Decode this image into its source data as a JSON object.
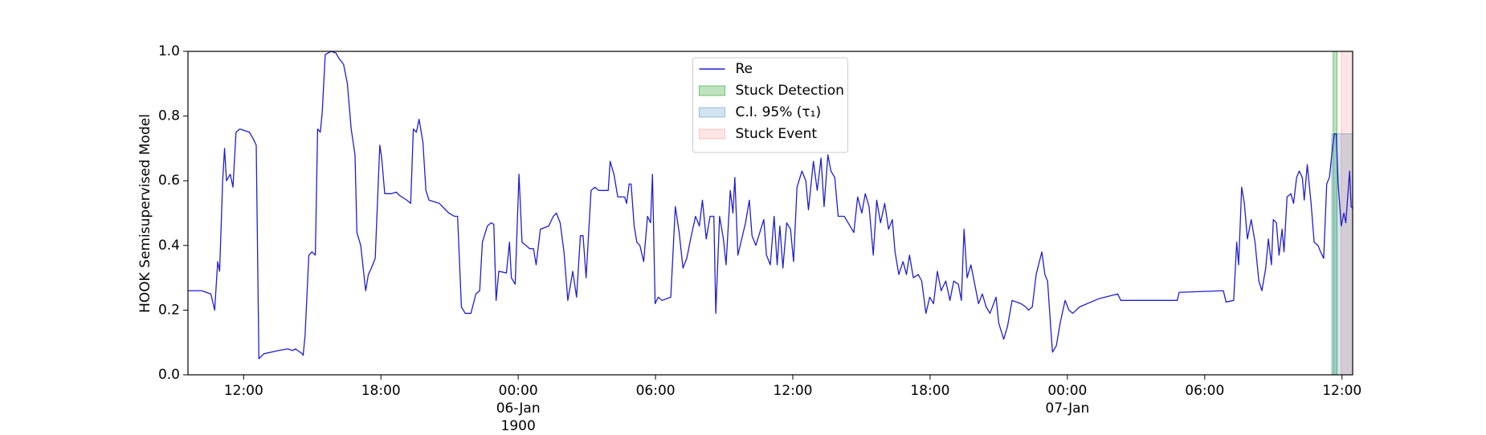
{
  "chart_data": {
    "type": "line",
    "ylabel": "HOOK Semisupervised Model",
    "xlim": [
      "1900-01-05T09:34",
      "1900-01-07T12:28"
    ],
    "xticks": [
      {
        "value": "1900-01-05T12:00",
        "label": "12:00"
      },
      {
        "value": "1900-01-05T18:00",
        "label": "18:00"
      },
      {
        "value": "1900-01-06T00:00",
        "label": "00:00\n06-Jan\n1900"
      },
      {
        "value": "1900-01-06T06:00",
        "label": "06:00"
      },
      {
        "value": "1900-01-06T12:00",
        "label": "12:00"
      },
      {
        "value": "1900-01-06T18:00",
        "label": "18:00"
      },
      {
        "value": "1900-01-07T00:00",
        "label": "00:00\n07-Jan"
      },
      {
        "value": "1900-01-07T06:00",
        "label": "06:00"
      },
      {
        "value": "1900-01-07T12:00",
        "label": "12:00"
      }
    ],
    "ylim": [
      0,
      1
    ],
    "yticks": [
      {
        "value": 0,
        "label": "0.0"
      },
      0.2,
      0.4,
      0.6,
      0.8,
      {
        "value": 1,
        "label": "1.0"
      }
    ],
    "grid": false,
    "legend": "upper center",
    "x": [
      "1900-01-05T09:34",
      "1900-01-05T10:10",
      "1900-01-05T10:34",
      "1900-01-05T10:44",
      "1900-01-05T10:52",
      "1900-01-05T10:57",
      "1900-01-05T11:05",
      "1900-01-05T11:10",
      "1900-01-05T11:15",
      "1900-01-05T11:25",
      "1900-01-05T11:32",
      "1900-01-05T11:40",
      "1900-01-05T11:50",
      "1900-01-05T12:15",
      "1900-01-05T12:25",
      "1900-01-05T12:33",
      "1900-01-05T12:40",
      "1900-01-05T12:53",
      "1900-01-05T13:31",
      "1900-01-05T13:56",
      "1900-01-05T14:08",
      "1900-01-05T14:16",
      "1900-01-05T14:34",
      "1900-01-05T14:36",
      "1900-01-05T14:41",
      "1900-01-05T14:51",
      "1900-01-05T14:59",
      "1900-01-05T15:08",
      "1900-01-05T15:14",
      "1900-01-05T15:21",
      "1900-01-05T15:26",
      "1900-01-05T15:34",
      "1900-01-05T15:49",
      "1900-01-05T16:02",
      "1900-01-05T16:09",
      "1900-01-05T16:22",
      "1900-01-05T16:32",
      "1900-01-05T16:42",
      "1900-01-05T16:52",
      "1900-01-05T16:57",
      "1900-01-05T17:07",
      "1900-01-05T17:20",
      "1900-01-05T17:27",
      "1900-01-05T17:35",
      "1900-01-05T17:45",
      "1900-01-05T17:57",
      "1900-01-05T18:02",
      "1900-01-05T18:10",
      "1900-01-05T18:27",
      "1900-01-05T18:40",
      "1900-01-05T18:48",
      "1900-01-05T19:08",
      "1900-01-05T19:18",
      "1900-01-05T19:25",
      "1900-01-05T19:33",
      "1900-01-05T19:40",
      "1900-01-05T19:50",
      "1900-01-05T19:58",
      "1900-01-05T20:06",
      "1900-01-05T20:33",
      "1900-01-05T20:58",
      "1900-01-05T21:13",
      "1900-01-05T21:21",
      "1900-01-05T21:31",
      "1900-01-05T21:41",
      "1900-01-05T21:56",
      "1900-01-05T22:09",
      "1900-01-05T22:19",
      "1900-01-05T22:26",
      "1900-01-05T22:39",
      "1900-01-05T22:49",
      "1900-01-05T22:56",
      "1900-01-05T23:02",
      "1900-01-05T23:09",
      "1900-01-05T23:29",
      "1900-01-05T23:37",
      "1900-01-05T23:42",
      "1900-01-05T23:52",
      "1900-01-06T00:02",
      "1900-01-06T00:10",
      "1900-01-06T00:20",
      "1900-01-06T00:30",
      "1900-01-06T00:40",
      "1900-01-06T00:47",
      "1900-01-06T00:58",
      "1900-01-06T01:20",
      "1900-01-06T01:32",
      "1900-01-06T01:40",
      "1900-01-06T01:50",
      "1900-01-06T02:00",
      "1900-01-06T02:10",
      "1900-01-06T02:23",
      "1900-01-06T02:33",
      "1900-01-06T02:43",
      "1900-01-06T02:50",
      "1900-01-06T02:58",
      "1900-01-06T03:11",
      "1900-01-06T03:21",
      "1900-01-06T03:31",
      "1900-01-06T03:56",
      "1900-01-06T04:01",
      "1900-01-06T04:11",
      "1900-01-06T04:21",
      "1900-01-06T04:39",
      "1900-01-06T04:44",
      "1900-01-06T04:51",
      "1900-01-06T04:56",
      "1900-01-06T05:04",
      "1900-01-06T05:11",
      "1900-01-06T05:19",
      "1900-01-06T05:29",
      "1900-01-06T05:39",
      "1900-01-06T05:47",
      "1900-01-06T05:52",
      "1900-01-06T05:59",
      "1900-01-06T06:07",
      "1900-01-06T06:17",
      "1900-01-06T06:40",
      "1900-01-06T06:52",
      "1900-01-06T07:02",
      "1900-01-06T07:12",
      "1900-01-06T07:22",
      "1900-01-06T07:32",
      "1900-01-06T07:45",
      "1900-01-06T07:55",
      "1900-01-06T08:03",
      "1900-01-06T08:13",
      "1900-01-06T08:23",
      "1900-01-06T08:33",
      "1900-01-06T08:38",
      "1900-01-06T08:48",
      "1900-01-06T08:58",
      "1900-01-06T09:05",
      "1900-01-06T09:16",
      "1900-01-06T09:23",
      "1900-01-06T09:28",
      "1900-01-06T09:36",
      "1900-01-06T09:46",
      "1900-01-06T09:56",
      "1900-01-06T10:06",
      "1900-01-06T10:13",
      "1900-01-06T10:23",
      "1900-01-06T10:36",
      "1900-01-06T10:44",
      "1900-01-06T10:51",
      "1900-01-06T11:01",
      "1900-01-06T11:11",
      "1900-01-06T11:19",
      "1900-01-06T11:26",
      "1900-01-06T11:34",
      "1900-01-06T11:44",
      "1900-01-06T11:54",
      "1900-01-06T12:02",
      "1900-01-06T12:11",
      "1900-01-06T12:24",
      "1900-01-06T12:34",
      "1900-01-06T12:41",
      "1900-01-06T12:54",
      "1900-01-06T13:04",
      "1900-01-06T13:14",
      "1900-01-06T13:22",
      "1900-01-06T13:32",
      "1900-01-06T13:40",
      "1900-01-06T13:50",
      "1900-01-06T13:59",
      "1900-01-06T14:15",
      "1900-01-06T14:25",
      "1900-01-06T14:40",
      "1900-01-06T14:50",
      "1900-01-06T15:01",
      "1900-01-06T15:10",
      "1900-01-06T15:20",
      "1900-01-06T15:31",
      "1900-01-06T15:40",
      "1900-01-06T15:50",
      "1900-01-06T16:01",
      "1900-01-06T16:11",
      "1900-01-06T16:21",
      "1900-01-06T16:28",
      "1900-01-06T16:38",
      "1900-01-06T16:49",
      "1900-01-06T16:58",
      "1900-01-06T17:06",
      "1900-01-06T17:16",
      "1900-01-06T17:29",
      "1900-01-06T17:38",
      "1900-01-06T17:49",
      "1900-01-06T17:59",
      "1900-01-06T18:09",
      "1900-01-06T18:19",
      "1900-01-06T18:29",
      "1900-01-06T18:41",
      "1900-01-06T18:52",
      "1900-01-06T19:02",
      "1900-01-06T19:14",
      "1900-01-06T19:22",
      "1900-01-06T19:29",
      "1900-01-06T19:37",
      "1900-01-06T19:47",
      "1900-01-06T19:57",
      "1900-01-06T20:07",
      "1900-01-06T20:17",
      "1900-01-06T20:27",
      "1900-01-06T20:37",
      "1900-01-06T20:53",
      "1900-01-06T21:00",
      "1900-01-06T21:13",
      "1900-01-06T21:23",
      "1900-01-06T21:35",
      "1900-01-06T21:58",
      "1900-01-06T22:11",
      "1900-01-06T22:18",
      "1900-01-06T22:28",
      "1900-01-06T22:38",
      "1900-01-06T22:53",
      "1900-01-06T23:01",
      "1900-01-06T23:08",
      "1900-01-06T23:16",
      "1900-01-06T23:21",
      "1900-01-06T23:31",
      "1900-01-06T23:41",
      "1900-01-06T23:54",
      "1900-01-07T00:04",
      "1900-01-07T00:14",
      "1900-01-07T00:32",
      "1900-01-07T01:22",
      "1900-01-07T02:12",
      "1900-01-07T02:20",
      "1900-01-07T04:48",
      "1900-01-07T04:53",
      "1900-01-07T06:49",
      "1900-01-07T06:56",
      "1900-01-07T07:16",
      "1900-01-07T07:24",
      "1900-01-07T07:29",
      "1900-01-07T07:37",
      "1900-01-07T07:44",
      "1900-01-07T07:52",
      "1900-01-07T08:02",
      "1900-01-07T08:12",
      "1900-01-07T08:22",
      "1900-01-07T08:30",
      "1900-01-07T08:40",
      "1900-01-07T08:47",
      "1900-01-07T08:55",
      "1900-01-07T09:00",
      "1900-01-07T09:08",
      "1900-01-07T09:15",
      "1900-01-07T09:23",
      "1900-01-07T09:28",
      "1900-01-07T09:36",
      "1900-01-07T09:46",
      "1900-01-07T09:53",
      "1900-01-07T10:01",
      "1900-01-07T10:08",
      "1900-01-07T10:16",
      "1900-01-07T10:21",
      "1900-01-07T10:29",
      "1900-01-07T10:39",
      "1900-01-07T10:47",
      "1900-01-07T10:57",
      "1900-01-07T11:04",
      "1900-01-07T11:12",
      "1900-01-07T11:20",
      "1900-01-07T11:27",
      "1900-01-07T11:35",
      "1900-01-07T11:40",
      "1900-01-07T11:45",
      "1900-01-07T11:50",
      "1900-01-07T11:58",
      "1900-01-07T12:05",
      "1900-01-07T12:10",
      "1900-01-07T12:20",
      "1900-01-07T12:24",
      "1900-01-07T12:28"
    ],
    "series": [
      {
        "name": "Re",
        "color": "#1f1fcc",
        "values": [
          0.26,
          0.26,
          0.25,
          0.2,
          0.35,
          0.32,
          0.6,
          0.7,
          0.6,
          0.62,
          0.58,
          0.75,
          0.76,
          0.75,
          0.73,
          0.71,
          0.05,
          0.065,
          0.075,
          0.08,
          0.075,
          0.08,
          0.065,
          0.06,
          0.12,
          0.37,
          0.38,
          0.37,
          0.76,
          0.75,
          0.81,
          0.99,
          1.0,
          0.995,
          0.98,
          0.96,
          0.9,
          0.76,
          0.68,
          0.44,
          0.4,
          0.26,
          0.31,
          0.33,
          0.36,
          0.71,
          0.67,
          0.56,
          0.56,
          0.565,
          0.555,
          0.54,
          0.53,
          0.76,
          0.75,
          0.79,
          0.72,
          0.57,
          0.54,
          0.53,
          0.5,
          0.49,
          0.49,
          0.21,
          0.19,
          0.19,
          0.25,
          0.26,
          0.41,
          0.46,
          0.47,
          0.465,
          0.23,
          0.32,
          0.315,
          0.41,
          0.3,
          0.28,
          0.62,
          0.41,
          0.4,
          0.39,
          0.39,
          0.34,
          0.45,
          0.46,
          0.49,
          0.5,
          0.47,
          0.38,
          0.23,
          0.32,
          0.24,
          0.43,
          0.43,
          0.3,
          0.57,
          0.58,
          0.57,
          0.57,
          0.66,
          0.62,
          0.55,
          0.55,
          0.53,
          0.59,
          0.59,
          0.46,
          0.41,
          0.4,
          0.35,
          0.49,
          0.47,
          0.62,
          0.22,
          0.24,
          0.23,
          0.24,
          0.52,
          0.44,
          0.33,
          0.36,
          0.42,
          0.49,
          0.46,
          0.54,
          0.42,
          0.49,
          0.49,
          0.19,
          0.49,
          0.42,
          0.34,
          0.57,
          0.5,
          0.61,
          0.37,
          0.42,
          0.47,
          0.54,
          0.43,
          0.4,
          0.45,
          0.48,
          0.37,
          0.34,
          0.49,
          0.34,
          0.46,
          0.33,
          0.47,
          0.45,
          0.35,
          0.58,
          0.63,
          0.6,
          0.51,
          0.66,
          0.57,
          0.67,
          0.52,
          0.68,
          0.63,
          0.61,
          0.49,
          0.49,
          0.47,
          0.44,
          0.55,
          0.5,
          0.56,
          0.52,
          0.37,
          0.54,
          0.47,
          0.53,
          0.45,
          0.48,
          0.38,
          0.31,
          0.35,
          0.31,
          0.37,
          0.3,
          0.31,
          0.29,
          0.19,
          0.24,
          0.22,
          0.32,
          0.26,
          0.29,
          0.23,
          0.29,
          0.28,
          0.23,
          0.45,
          0.3,
          0.34,
          0.28,
          0.22,
          0.25,
          0.21,
          0.19,
          0.24,
          0.16,
          0.11,
          0.15,
          0.23,
          0.22,
          0.21,
          0.2,
          0.21,
          0.31,
          0.38,
          0.31,
          0.29,
          0.15,
          0.07,
          0.09,
          0.16,
          0.23,
          0.2,
          0.19,
          0.21,
          0.235,
          0.25,
          0.23,
          0.23,
          0.255,
          0.26,
          0.225,
          0.23,
          0.41,
          0.34,
          0.58,
          0.53,
          0.42,
          0.48,
          0.41,
          0.29,
          0.26,
          0.33,
          0.42,
          0.34,
          0.48,
          0.47,
          0.37,
          0.45,
          0.38,
          0.55,
          0.56,
          0.53,
          0.61,
          0.63,
          0.61,
          0.54,
          0.65,
          0.53,
          0.41,
          0.4,
          0.38,
          0.36,
          0.59,
          0.61,
          0.7,
          0.745,
          0.745,
          0.59,
          0.46,
          0.5,
          0.47,
          0.63,
          0.52,
          0.515
        ]
      }
    ],
    "spans": [
      {
        "name": "Stuck Detection",
        "color": "#2ca02c",
        "alpha": 0.3,
        "x": [
          "1900-01-07T11:37",
          "1900-01-07T11:47"
        ],
        "y": [
          0,
          1
        ]
      },
      {
        "name": "C.I. 95% (τ₁)",
        "color": "#1f77b4",
        "alpha": 0.2,
        "x": [
          "1900-01-07T11:33",
          "1900-01-07T12:28"
        ],
        "y": [
          0,
          0.745
        ]
      },
      {
        "name": "Stuck Event",
        "color": "#ff0000",
        "alpha": 0.1,
        "x": [
          "1900-01-07T11:58",
          "1900-01-07T12:28"
        ],
        "y": [
          0,
          1
        ]
      }
    ]
  }
}
